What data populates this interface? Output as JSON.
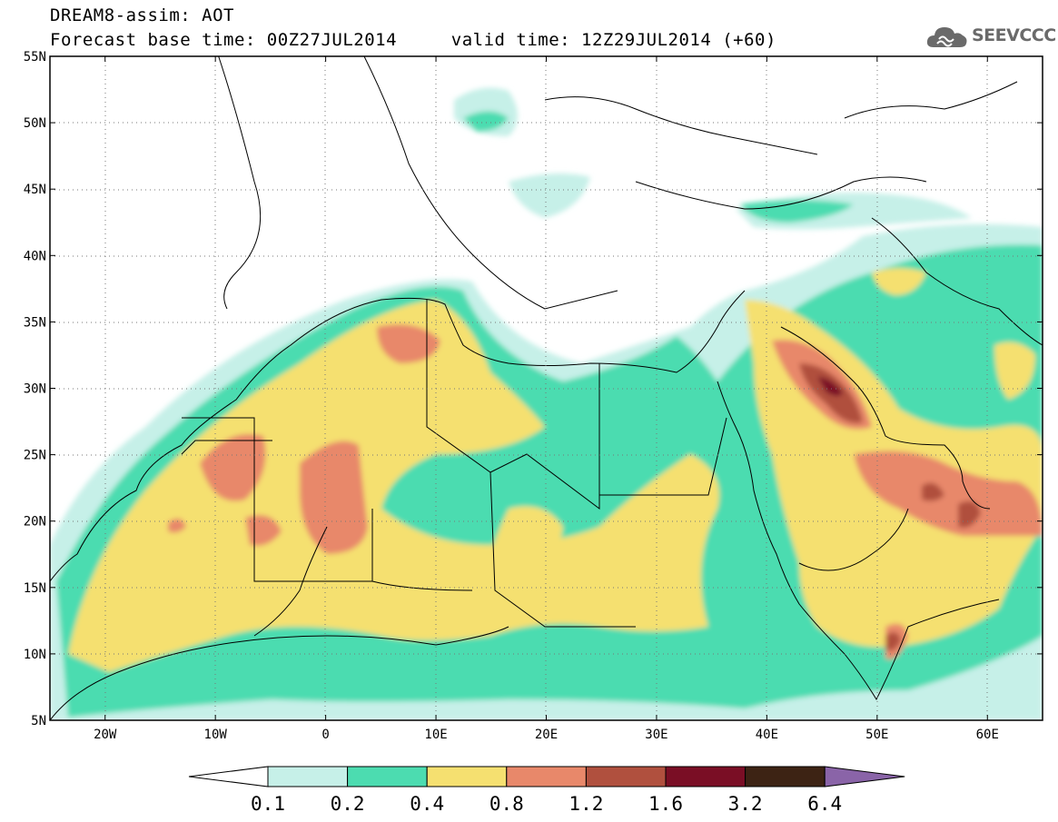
{
  "header": {
    "title": "DREAM8-assim: AOT",
    "base_time_label": "Forecast base time: 00Z27JUL2014",
    "valid_time_label": "valid time: 12Z29JUL2014 (+60)"
  },
  "logo": {
    "text": "SEEVCCC",
    "icon": "cloud-icon"
  },
  "map": {
    "lat_labels": [
      "55N",
      "50N",
      "45N",
      "40N",
      "35N",
      "30N",
      "25N",
      "20N",
      "15N",
      "10N",
      "5N"
    ],
    "lon_labels": [
      "20W",
      "10W",
      "0",
      "10E",
      "20E",
      "30E",
      "40E",
      "50E",
      "60E"
    ],
    "lat_range": [
      5,
      55
    ],
    "lon_range": [
      -25,
      65
    ],
    "grid": "dotted"
  },
  "legend": {
    "thresholds": [
      "0.1",
      "0.2",
      "0.4",
      "0.8",
      "1.2",
      "1.6",
      "3.2",
      "6.4"
    ],
    "colors": [
      "#ffffff",
      "#c6f0e8",
      "#4cdcb0",
      "#f5e070",
      "#e8886a",
      "#b0503e",
      "#7a0e25",
      "#3d2314",
      "#8a64a8"
    ]
  }
}
